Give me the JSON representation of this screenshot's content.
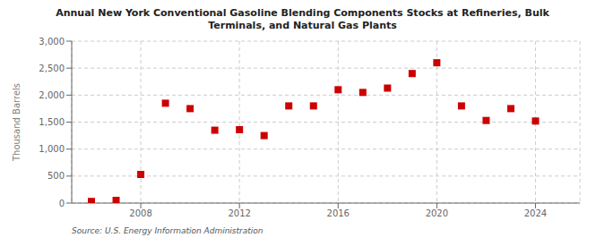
{
  "chart_data": {
    "type": "scatter",
    "title": "Annual New York Conventional Gasoline Blending Components Stocks at Refineries, Bulk\nTerminals, and Natural Gas Plants",
    "ylabel": "Thousand Barrels",
    "source": "Source: U.S. Energy Information Administration",
    "x": [
      2006,
      2007,
      2008,
      2009,
      2010,
      2011,
      2012,
      2013,
      2014,
      2015,
      2016,
      2017,
      2018,
      2019,
      2020,
      2021,
      2022,
      2023,
      2024
    ],
    "values": [
      30,
      50,
      530,
      1850,
      1750,
      1350,
      1360,
      1250,
      1800,
      1800,
      2100,
      2050,
      2130,
      2400,
      2600,
      1800,
      1530,
      1750,
      1520
    ],
    "color": "#cc0000",
    "marker": "square",
    "xlim": [
      2005.2,
      2025.8
    ],
    "xticks": [
      2008,
      2012,
      2016,
      2020,
      2024
    ],
    "ylim": [
      0,
      3000
    ],
    "yticks": [
      0,
      500,
      {
        "value": 1000,
        "label": "1,000"
      },
      {
        "value": 1500,
        "label": "1,500"
      },
      {
        "value": 2000,
        "label": "2,000"
      },
      {
        "value": 2500,
        "label": "2,500"
      },
      {
        "value": 3000,
        "label": "3,000"
      }
    ],
    "grid": true
  }
}
